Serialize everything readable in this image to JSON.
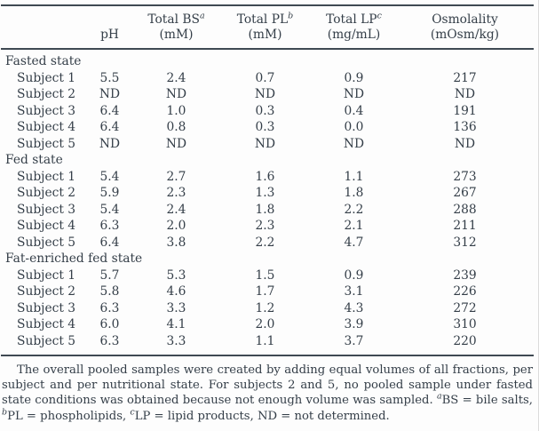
{
  "page": {
    "background": "#fdfdfd",
    "text_color": "#343e48",
    "rule_color": "#3f4952"
  },
  "table": {
    "columns": [
      {
        "label": "",
        "sup": "",
        "sub": ""
      },
      {
        "label": "pH",
        "sup": "",
        "sub": ""
      },
      {
        "label": "Total BS",
        "sup": "a",
        "sub": "(mM)"
      },
      {
        "label": "Total PL",
        "sup": "b",
        "sub": "(mM)"
      },
      {
        "label": "Total LP",
        "sup": "c",
        "sub": "(mg/mL)"
      },
      {
        "label": "Osmolality",
        "sup": "",
        "sub": "(mOsm/kg)"
      }
    ],
    "sections": [
      {
        "title": "Fasted state",
        "rows": [
          {
            "label": "Subject 1",
            "values": [
              "5.5",
              "2.4",
              "0.7",
              "0.9",
              "217"
            ]
          },
          {
            "label": "Subject 2",
            "values": [
              "ND",
              "ND",
              "ND",
              "ND",
              "ND"
            ]
          },
          {
            "label": "Subject 3",
            "values": [
              "6.4",
              "1.0",
              "0.3",
              "0.4",
              "191"
            ]
          },
          {
            "label": "Subject 4",
            "values": [
              "6.4",
              "0.8",
              "0.3",
              "0.0",
              "136"
            ]
          },
          {
            "label": "Subject 5",
            "values": [
              "ND",
              "ND",
              "ND",
              "ND",
              "ND"
            ]
          }
        ]
      },
      {
        "title": "Fed state",
        "rows": [
          {
            "label": "Subject 1",
            "values": [
              "5.4",
              "2.7",
              "1.6",
              "1.1",
              "273"
            ]
          },
          {
            "label": "Subject 2",
            "values": [
              "5.9",
              "2.3",
              "1.3",
              "1.8",
              "267"
            ]
          },
          {
            "label": "Subject 3",
            "values": [
              "5.4",
              "2.4",
              "1.8",
              "2.2",
              "288"
            ]
          },
          {
            "label": "Subject 4",
            "values": [
              "6.3",
              "2.0",
              "2.3",
              "2.1",
              "211"
            ]
          },
          {
            "label": "Subject 5",
            "values": [
              "6.4",
              "3.8",
              "2.2",
              "4.7",
              "312"
            ]
          }
        ]
      },
      {
        "title": "Fat-enriched fed state",
        "rows": [
          {
            "label": "Subject 1",
            "values": [
              "5.7",
              "5.3",
              "1.5",
              "0.9",
              "239"
            ]
          },
          {
            "label": "Subject 2",
            "values": [
              "5.8",
              "4.6",
              "1.7",
              "3.1",
              "226"
            ]
          },
          {
            "label": "Subject 3",
            "values": [
              "6.3",
              "3.3",
              "1.2",
              "4.3",
              "272"
            ]
          },
          {
            "label": "Subject 4",
            "values": [
              "6.0",
              "4.1",
              "2.0",
              "3.9",
              "310"
            ]
          },
          {
            "label": "Subject 5",
            "values": [
              "6.3",
              "3.3",
              "1.1",
              "3.7",
              "220"
            ]
          }
        ]
      }
    ]
  },
  "footnote": {
    "body": "The overall pooled samples were created by adding equal volumes of all fractions, per subject and per nutritional state. For subjects 2 and 5, no pooled sample under fasted state conditions was obtained because not enough volume was sampled. ",
    "defs": [
      {
        "sup": "a",
        "text": "BS = bile salts, "
      },
      {
        "sup": "b",
        "text": "PL = phospholipids, "
      },
      {
        "sup": "c",
        "text": "LP = lipid products, ND = not determined."
      }
    ]
  }
}
